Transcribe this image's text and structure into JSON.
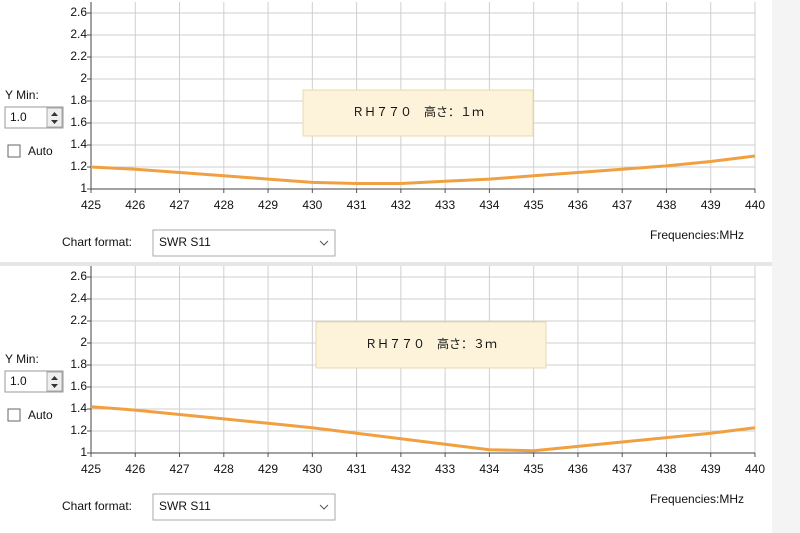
{
  "chart_data": [
    {
      "type": "line",
      "annotation": "ＲＨ７７０　高さ：１ｍ",
      "x": [
        425,
        426,
        427,
        428,
        429,
        430,
        431,
        432,
        433,
        434,
        435,
        436,
        437,
        438,
        439,
        440
      ],
      "values": [
        1.2,
        1.18,
        1.15,
        1.12,
        1.09,
        1.06,
        1.05,
        1.05,
        1.07,
        1.09,
        1.12,
        1.15,
        1.18,
        1.21,
        1.25,
        1.3
      ],
      "color": "#f0a040",
      "xlim": [
        425,
        440
      ],
      "xticks": [
        425,
        426,
        427,
        428,
        429,
        430,
        431,
        432,
        433,
        434,
        435,
        436,
        437,
        438,
        439,
        440
      ],
      "ylim": [
        1,
        2.7
      ],
      "yticks": [
        1,
        1.2,
        1.4,
        1.6,
        1.8,
        2,
        2.2,
        2.4,
        2.6
      ],
      "grid": true,
      "x_label": "Frequencies:MHz",
      "y_min_label": "Y Min:",
      "y_min_value": "1.0",
      "auto_label": "Auto",
      "format_label": "Chart format:",
      "format_value": "SWR S11"
    },
    {
      "type": "line",
      "annotation": "ＲＨ７７０　高さ：３ｍ",
      "x": [
        425,
        426,
        427,
        428,
        429,
        430,
        431,
        432,
        433,
        434,
        435,
        436,
        437,
        438,
        439,
        440
      ],
      "values": [
        1.42,
        1.39,
        1.35,
        1.31,
        1.27,
        1.23,
        1.18,
        1.13,
        1.08,
        1.03,
        1.02,
        1.06,
        1.1,
        1.14,
        1.18,
        1.23
      ],
      "color": "#f0a040",
      "xlim": [
        425,
        440
      ],
      "xticks": [
        425,
        426,
        427,
        428,
        429,
        430,
        431,
        432,
        433,
        434,
        435,
        436,
        437,
        438,
        439,
        440
      ],
      "ylim": [
        1,
        2.7
      ],
      "yticks": [
        1,
        1.2,
        1.4,
        1.6,
        1.8,
        2,
        2.2,
        2.4,
        2.6
      ],
      "grid": true,
      "x_label": "Frequencies:MHz",
      "y_min_label": "Y Min:",
      "y_min_value": "1.0",
      "auto_label": "Auto",
      "format_label": "Chart format:",
      "format_value": "SWR S11"
    }
  ]
}
